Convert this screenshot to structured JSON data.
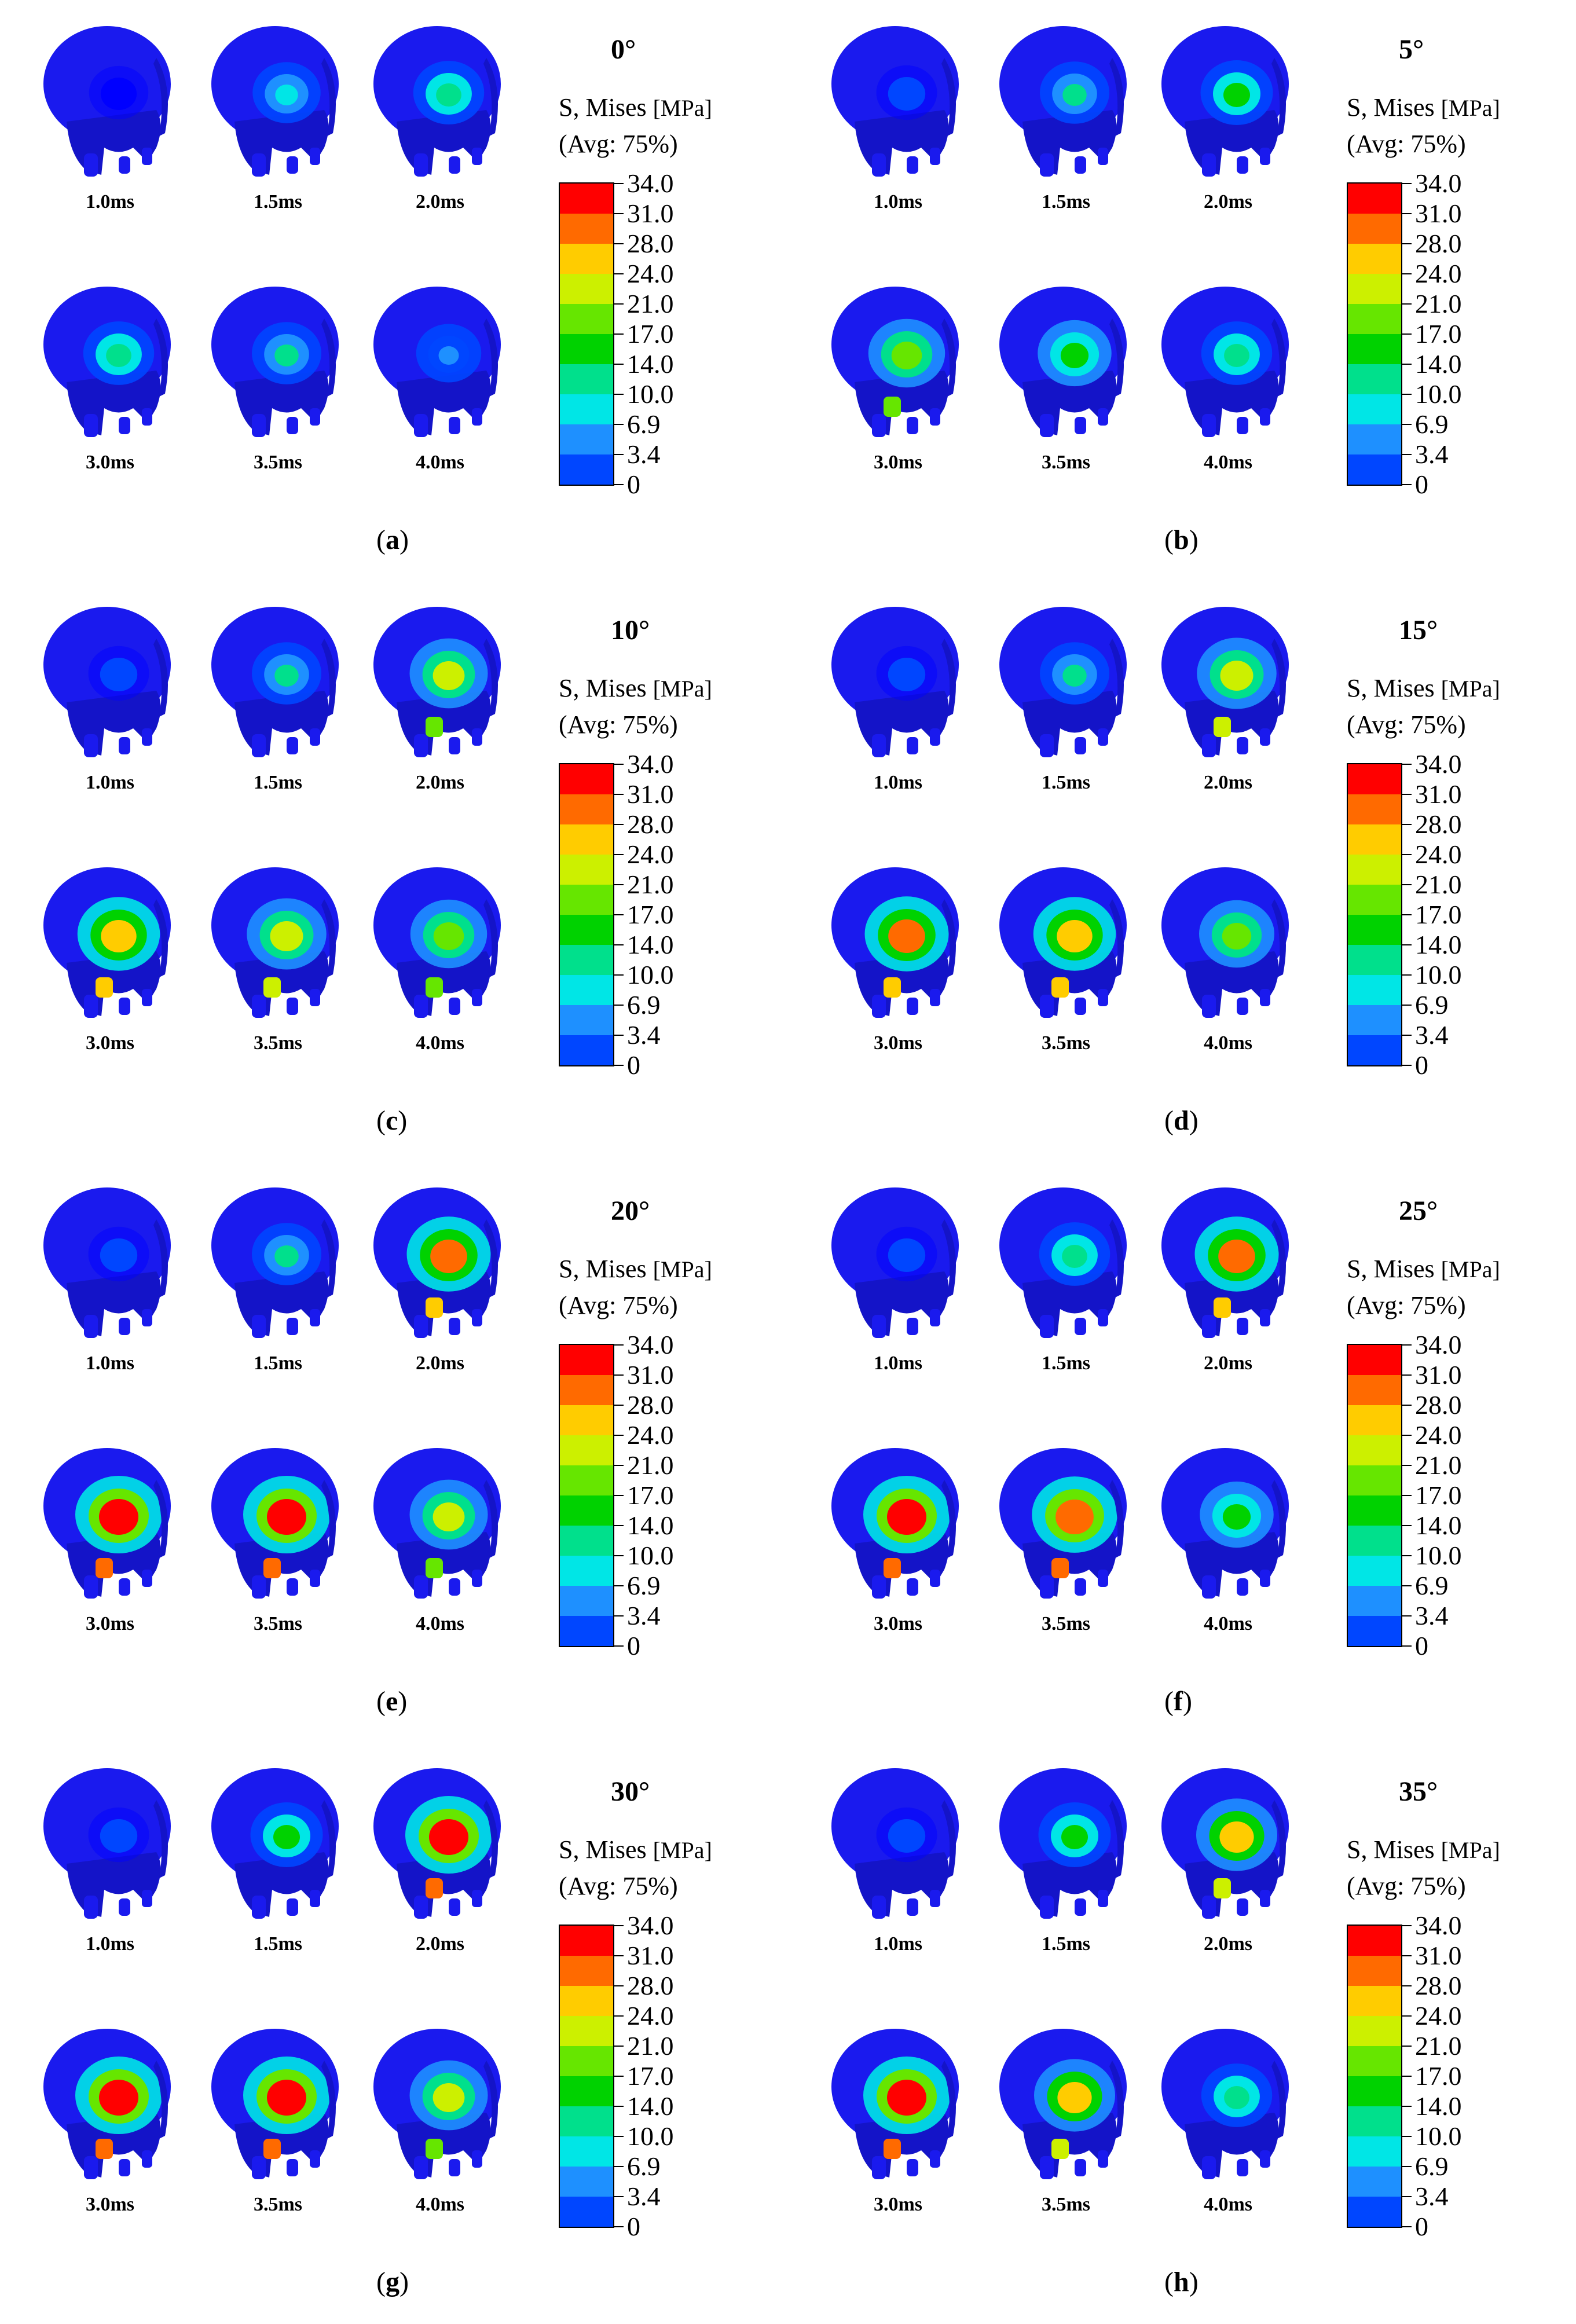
{
  "legend": {
    "title_line1": "S, Mises",
    "unit": "[MPa]",
    "title_line2": "(Avg: 75%)",
    "values": [
      "34.0",
      "31.0",
      "28.0",
      "24.0",
      "21.0",
      "17.0",
      "14.0",
      "10.0",
      "6.9",
      "3.4",
      "0"
    ],
    "colors": [
      "#ff0000",
      "#ff6a00",
      "#ffcc00",
      "#ccf000",
      "#66e600",
      "#00d200",
      "#00e08c",
      "#00e6e6",
      "#1e90ff",
      "#0046ff",
      "#0000ff"
    ]
  },
  "time_labels": [
    "1.0ms",
    "1.5ms",
    "2.0ms",
    "3.0ms",
    "3.5ms",
    "4.0ms"
  ],
  "panels": [
    {
      "letter": "a",
      "angle": "0°",
      "intensity": [
        0.05,
        0.35,
        0.45,
        0.45,
        0.4,
        0.25
      ]
    },
    {
      "letter": "b",
      "angle": "5°",
      "intensity": [
        0.1,
        0.4,
        0.5,
        0.65,
        0.55,
        0.45
      ]
    },
    {
      "letter": "c",
      "angle": "10°",
      "intensity": [
        0.1,
        0.4,
        0.7,
        0.85,
        0.75,
        0.65
      ]
    },
    {
      "letter": "d",
      "angle": "15°",
      "intensity": [
        0.1,
        0.4,
        0.75,
        0.9,
        0.85,
        0.6
      ]
    },
    {
      "letter": "e",
      "angle": "20°",
      "intensity": [
        0.1,
        0.4,
        0.9,
        1.0,
        1.0,
        0.7
      ]
    },
    {
      "letter": "f",
      "angle": "25°",
      "intensity": [
        0.1,
        0.45,
        0.9,
        1.0,
        0.95,
        0.55
      ]
    },
    {
      "letter": "g",
      "angle": "30°",
      "intensity": [
        0.1,
        0.5,
        1.0,
        1.0,
        1.0,
        0.7
      ]
    },
    {
      "letter": "h",
      "angle": "35°",
      "intensity": [
        0.1,
        0.5,
        0.8,
        1.0,
        0.8,
        0.45
      ]
    }
  ]
}
